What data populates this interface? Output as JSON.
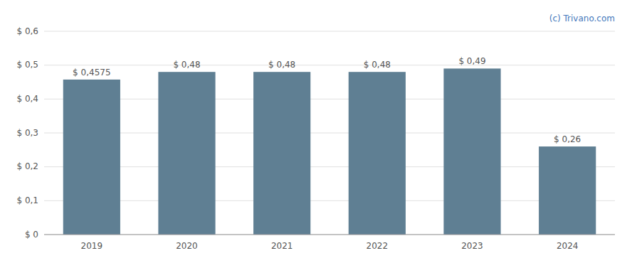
{
  "chart_data": {
    "type": "bar",
    "categories": [
      "2019",
      "2020",
      "2021",
      "2022",
      "2023",
      "2024"
    ],
    "values": [
      0.4575,
      0.48,
      0.48,
      0.48,
      0.49,
      0.26
    ],
    "value_labels": [
      "$ 0,4575",
      "$ 0,48",
      "$ 0,48",
      "$ 0,48",
      "$ 0,49",
      "$ 0,26"
    ],
    "color": "#5f7f93",
    "ylim": [
      0,
      0.6
    ],
    "yticks": [
      {
        "value": 0,
        "label": "$ 0"
      },
      {
        "value": 0.1,
        "label": "$ 0,1"
      },
      {
        "value": 0.2,
        "label": "$ 0,2"
      },
      {
        "value": 0.3,
        "label": "$ 0,3"
      },
      {
        "value": 0.4,
        "label": "$ 0,4"
      },
      {
        "value": 0.5,
        "label": "$ 0,5"
      },
      {
        "value": 0.6,
        "label": "$ 0,6"
      }
    ],
    "grid": true,
    "data_labels": true,
    "annotations": [
      "(c) Trivano.com"
    ]
  }
}
